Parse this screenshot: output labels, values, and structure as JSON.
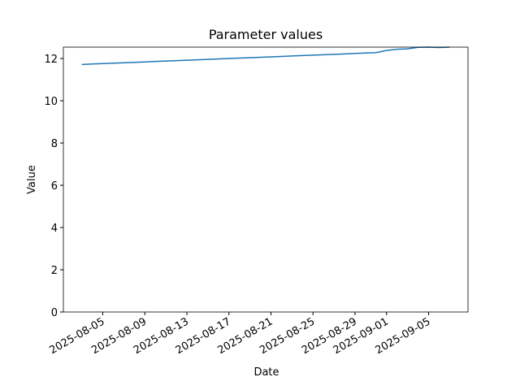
{
  "chart_data": {
    "type": "line",
    "title": "Parameter values",
    "x_label": "Date",
    "y_label": "Value",
    "x": [
      "2025-08-03",
      "2025-08-04",
      "2025-08-05",
      "2025-08-06",
      "2025-08-07",
      "2025-08-08",
      "2025-08-09",
      "2025-08-10",
      "2025-08-11",
      "2025-08-12",
      "2025-08-13",
      "2025-08-14",
      "2025-08-15",
      "2025-08-16",
      "2025-08-17",
      "2025-08-18",
      "2025-08-19",
      "2025-08-20",
      "2025-08-21",
      "2025-08-22",
      "2025-08-23",
      "2025-08-24",
      "2025-08-25",
      "2025-08-26",
      "2025-08-27",
      "2025-08-28",
      "2025-08-29",
      "2025-08-30",
      "2025-08-31",
      "2025-09-01",
      "2025-09-02",
      "2025-09-03",
      "2025-09-04",
      "2025-09-05",
      "2025-09-06",
      "2025-09-07"
    ],
    "series": [
      {
        "color": "#1f77b4",
        "values": [
          11.72,
          11.74,
          11.76,
          11.78,
          11.8,
          11.82,
          11.84,
          11.86,
          11.88,
          11.9,
          11.92,
          11.94,
          11.96,
          11.98,
          12.0,
          12.02,
          12.04,
          12.06,
          12.08,
          12.1,
          12.12,
          12.14,
          12.16,
          12.18,
          12.2,
          12.22,
          12.24,
          12.26,
          12.28,
          12.38,
          12.44,
          12.46,
          12.53,
          12.54,
          12.52,
          12.54
        ]
      }
    ],
    "xlim": [
      "2025-08-01T06:00:00Z",
      "2025-09-08T18:00:00Z"
    ],
    "xticks": [
      "2025-08-05",
      "2025-08-09",
      "2025-08-13",
      "2025-08-17",
      "2025-08-21",
      "2025-08-25",
      "2025-08-29",
      "2025-09-01",
      "2025-09-05"
    ],
    "ylim": [
      0,
      12.54
    ],
    "yticks": [
      0,
      2,
      4,
      6,
      8,
      10,
      12
    ],
    "grid": false
  }
}
